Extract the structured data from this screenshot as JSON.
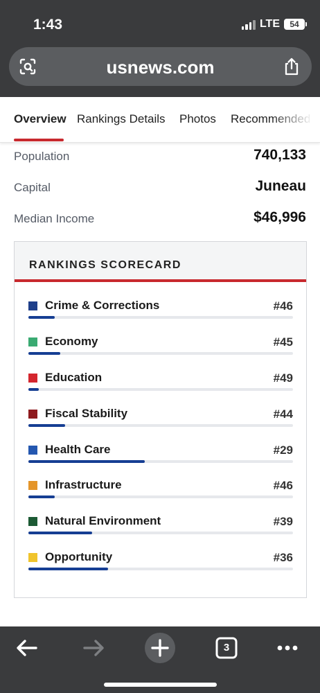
{
  "status_bar": {
    "time": "1:43",
    "network": "LTE",
    "battery": "54"
  },
  "browser": {
    "url": "usnews.com",
    "tab_count": "3"
  },
  "tabs": [
    {
      "label": "Overview",
      "active": true
    },
    {
      "label": "Rankings Details",
      "active": false
    },
    {
      "label": "Photos",
      "active": false
    },
    {
      "label": "Recommended",
      "active": false
    }
  ],
  "facts": [
    {
      "label": "Population",
      "value": "740,133"
    },
    {
      "label": "Capital",
      "value": "Juneau"
    },
    {
      "label": "Median Income",
      "value": "$46,996"
    }
  ],
  "scorecard": {
    "title": "RANKINGS SCORECARD",
    "bar_color": "#163e93",
    "items": [
      {
        "label": "Crime & Corrections",
        "rank": "#46",
        "color": "#1f3f8a",
        "progress": 0.1
      },
      {
        "label": "Economy",
        "rank": "#45",
        "color": "#3aaa72",
        "progress": 0.12
      },
      {
        "label": "Education",
        "rank": "#49",
        "color": "#d4262e",
        "progress": 0.04
      },
      {
        "label": "Fiscal Stability",
        "rank": "#44",
        "color": "#8e1a1e",
        "progress": 0.14
      },
      {
        "label": "Health Care",
        "rank": "#29",
        "color": "#2457b0",
        "progress": 0.44
      },
      {
        "label": "Infrastructure",
        "rank": "#46",
        "color": "#e4952a",
        "progress": 0.1
      },
      {
        "label": "Natural Environment",
        "rank": "#39",
        "color": "#1c5a34",
        "progress": 0.24
      },
      {
        "label": "Opportunity",
        "rank": "#36",
        "color": "#f0c42c",
        "progress": 0.3
      }
    ]
  },
  "toolbar": {
    "back": "back-arrow-icon",
    "forward": "forward-arrow-icon",
    "new_tab": "plus-icon",
    "more": "more-dots-icon"
  }
}
